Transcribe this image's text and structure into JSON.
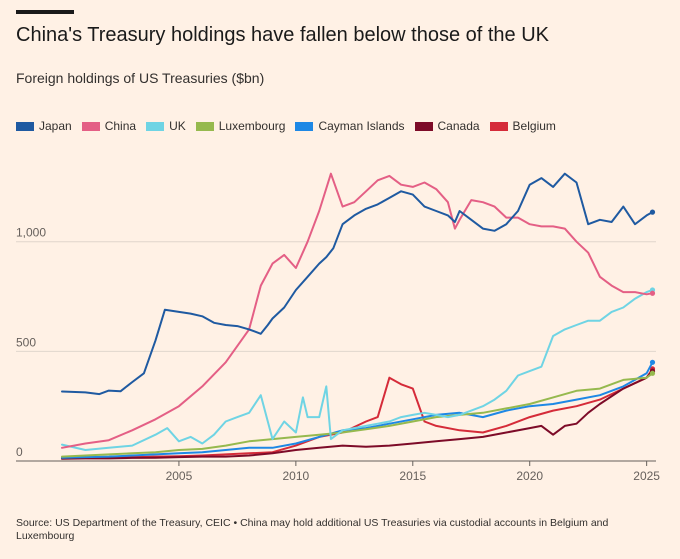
{
  "title": "China's Treasury holdings have fallen below those of the UK",
  "subtitle": "Foreign holdings of US Treasuries ($bn)",
  "source": "Source: US Department of the Treasury, CEIC • China may hold additional US Treasuries via custodial accounts in Belgium and Luxembourg",
  "chart_data": {
    "type": "line",
    "title": "China's Treasury holdings have fallen below those of the UK",
    "subtitle": "Foreign holdings of US Treasuries ($bn)",
    "xlim": [
      2000.0,
      2025.4
    ],
    "ylim": [
      0,
      1400
    ],
    "x_ticks": [
      2005,
      2010,
      2015,
      2020,
      2025
    ],
    "x_tick_labels": [
      "2005",
      "2010",
      "2015",
      "2020",
      "2025"
    ],
    "y_ticks": [
      0,
      500,
      1000
    ],
    "y_tick_labels": [
      "0",
      "500",
      "1,000"
    ],
    "grid": "horizontal",
    "legend_position": "top-left",
    "series": [
      {
        "name": "Japan",
        "color": "#1f5aa1",
        "points": [
          [
            2000.0,
            317
          ],
          [
            2001.0,
            313
          ],
          [
            2001.6,
            305
          ],
          [
            2002.0,
            321
          ],
          [
            2002.5,
            318
          ],
          [
            2003.0,
            360
          ],
          [
            2003.5,
            400
          ],
          [
            2004.0,
            550
          ],
          [
            2004.4,
            690
          ],
          [
            2005.0,
            680
          ],
          [
            2005.5,
            672
          ],
          [
            2006.0,
            660
          ],
          [
            2006.5,
            630
          ],
          [
            2007.0,
            620
          ],
          [
            2007.5,
            615
          ],
          [
            2008.0,
            600
          ],
          [
            2008.5,
            580
          ],
          [
            2008.8,
            620
          ],
          [
            2009.0,
            650
          ],
          [
            2009.5,
            700
          ],
          [
            2010.0,
            780
          ],
          [
            2010.5,
            840
          ],
          [
            2011.0,
            900
          ],
          [
            2011.3,
            930
          ],
          [
            2011.6,
            970
          ],
          [
            2012.0,
            1080
          ],
          [
            2012.5,
            1120
          ],
          [
            2013.0,
            1150
          ],
          [
            2013.5,
            1170
          ],
          [
            2014.0,
            1200
          ],
          [
            2014.5,
            1230
          ],
          [
            2015.0,
            1215
          ],
          [
            2015.5,
            1160
          ],
          [
            2016.0,
            1140
          ],
          [
            2016.5,
            1120
          ],
          [
            2016.8,
            1090
          ],
          [
            2017.0,
            1140
          ],
          [
            2017.5,
            1100
          ],
          [
            2018.0,
            1060
          ],
          [
            2018.5,
            1050
          ],
          [
            2019.0,
            1080
          ],
          [
            2019.5,
            1140
          ],
          [
            2020.0,
            1260
          ],
          [
            2020.5,
            1290
          ],
          [
            2021.0,
            1250
          ],
          [
            2021.5,
            1310
          ],
          [
            2022.0,
            1270
          ],
          [
            2022.5,
            1080
          ],
          [
            2023.0,
            1100
          ],
          [
            2023.5,
            1090
          ],
          [
            2024.0,
            1160
          ],
          [
            2024.5,
            1080
          ],
          [
            2025.0,
            1120
          ],
          [
            2025.25,
            1135
          ]
        ]
      },
      {
        "name": "China",
        "color": "#e45f85",
        "points": [
          [
            2000.0,
            60
          ],
          [
            2001.0,
            80
          ],
          [
            2002.0,
            95
          ],
          [
            2003.0,
            140
          ],
          [
            2004.0,
            190
          ],
          [
            2005.0,
            250
          ],
          [
            2006.0,
            340
          ],
          [
            2007.0,
            450
          ],
          [
            2008.0,
            600
          ],
          [
            2008.5,
            800
          ],
          [
            2009.0,
            900
          ],
          [
            2009.5,
            940
          ],
          [
            2010.0,
            880
          ],
          [
            2010.5,
            1000
          ],
          [
            2011.0,
            1140
          ],
          [
            2011.5,
            1310
          ],
          [
            2012.0,
            1160
          ],
          [
            2012.5,
            1180
          ],
          [
            2013.0,
            1230
          ],
          [
            2013.5,
            1280
          ],
          [
            2014.0,
            1300
          ],
          [
            2014.5,
            1260
          ],
          [
            2015.0,
            1250
          ],
          [
            2015.5,
            1270
          ],
          [
            2016.0,
            1240
          ],
          [
            2016.5,
            1180
          ],
          [
            2016.8,
            1060
          ],
          [
            2017.0,
            1100
          ],
          [
            2017.5,
            1190
          ],
          [
            2018.0,
            1180
          ],
          [
            2018.5,
            1160
          ],
          [
            2019.0,
            1110
          ],
          [
            2019.5,
            1110
          ],
          [
            2020.0,
            1080
          ],
          [
            2020.5,
            1070
          ],
          [
            2021.0,
            1070
          ],
          [
            2021.5,
            1060
          ],
          [
            2022.0,
            1000
          ],
          [
            2022.5,
            950
          ],
          [
            2023.0,
            840
          ],
          [
            2023.5,
            800
          ],
          [
            2024.0,
            770
          ],
          [
            2024.5,
            770
          ],
          [
            2025.0,
            760
          ],
          [
            2025.25,
            765
          ]
        ]
      },
      {
        "name": "UK",
        "color": "#6fd4e4",
        "points": [
          [
            2000.0,
            75
          ],
          [
            2001.0,
            50
          ],
          [
            2002.0,
            60
          ],
          [
            2003.0,
            70
          ],
          [
            2004.0,
            120
          ],
          [
            2004.5,
            150
          ],
          [
            2005.0,
            90
          ],
          [
            2005.5,
            110
          ],
          [
            2006.0,
            80
          ],
          [
            2006.5,
            120
          ],
          [
            2007.0,
            180
          ],
          [
            2007.5,
            200
          ],
          [
            2008.0,
            220
          ],
          [
            2008.5,
            300
          ],
          [
            2009.0,
            100
          ],
          [
            2009.5,
            180
          ],
          [
            2010.0,
            130
          ],
          [
            2010.3,
            290
          ],
          [
            2010.5,
            200
          ],
          [
            2011.0,
            200
          ],
          [
            2011.3,
            340
          ],
          [
            2011.5,
            100
          ],
          [
            2012.0,
            140
          ],
          [
            2012.5,
            150
          ],
          [
            2013.0,
            160
          ],
          [
            2013.5,
            170
          ],
          [
            2014.0,
            180
          ],
          [
            2014.5,
            200
          ],
          [
            2015.0,
            210
          ],
          [
            2015.5,
            220
          ],
          [
            2016.0,
            210
          ],
          [
            2016.5,
            200
          ],
          [
            2017.0,
            210
          ],
          [
            2017.5,
            230
          ],
          [
            2018.0,
            250
          ],
          [
            2018.5,
            280
          ],
          [
            2019.0,
            320
          ],
          [
            2019.5,
            390
          ],
          [
            2020.0,
            410
          ],
          [
            2020.5,
            430
          ],
          [
            2021.0,
            570
          ],
          [
            2021.5,
            600
          ],
          [
            2022.0,
            620
          ],
          [
            2022.5,
            640
          ],
          [
            2023.0,
            640
          ],
          [
            2023.5,
            680
          ],
          [
            2024.0,
            700
          ],
          [
            2024.5,
            740
          ],
          [
            2025.0,
            770
          ],
          [
            2025.25,
            780
          ]
        ]
      },
      {
        "name": "Luxembourg",
        "color": "#96b94e",
        "points": [
          [
            2000.0,
            20
          ],
          [
            2001.0,
            25
          ],
          [
            2002.0,
            30
          ],
          [
            2003.0,
            35
          ],
          [
            2004.0,
            40
          ],
          [
            2005.0,
            50
          ],
          [
            2006.0,
            55
          ],
          [
            2007.0,
            70
          ],
          [
            2008.0,
            90
          ],
          [
            2009.0,
            100
          ],
          [
            2010.0,
            110
          ],
          [
            2011.0,
            120
          ],
          [
            2012.0,
            130
          ],
          [
            2013.0,
            145
          ],
          [
            2014.0,
            160
          ],
          [
            2015.0,
            180
          ],
          [
            2016.0,
            200
          ],
          [
            2017.0,
            210
          ],
          [
            2018.0,
            220
          ],
          [
            2019.0,
            240
          ],
          [
            2020.0,
            260
          ],
          [
            2021.0,
            290
          ],
          [
            2022.0,
            320
          ],
          [
            2023.0,
            330
          ],
          [
            2024.0,
            370
          ],
          [
            2025.0,
            380
          ],
          [
            2025.25,
            400
          ]
        ]
      },
      {
        "name": "Cayman Islands",
        "color": "#1e88e5",
        "points": [
          [
            2000.0,
            15
          ],
          [
            2001.0,
            18
          ],
          [
            2002.0,
            20
          ],
          [
            2003.0,
            25
          ],
          [
            2004.0,
            30
          ],
          [
            2005.0,
            35
          ],
          [
            2006.0,
            40
          ],
          [
            2007.0,
            50
          ],
          [
            2008.0,
            60
          ],
          [
            2009.0,
            60
          ],
          [
            2010.0,
            80
          ],
          [
            2011.0,
            110
          ],
          [
            2012.0,
            140
          ],
          [
            2013.0,
            150
          ],
          [
            2014.0,
            170
          ],
          [
            2015.0,
            190
          ],
          [
            2016.0,
            210
          ],
          [
            2017.0,
            220
          ],
          [
            2018.0,
            200
          ],
          [
            2019.0,
            230
          ],
          [
            2020.0,
            250
          ],
          [
            2021.0,
            260
          ],
          [
            2022.0,
            280
          ],
          [
            2023.0,
            300
          ],
          [
            2024.0,
            340
          ],
          [
            2025.0,
            400
          ],
          [
            2025.25,
            450
          ]
        ]
      },
      {
        "name": "Canada",
        "color": "#7d0b28",
        "points": [
          [
            2000.0,
            10
          ],
          [
            2001.0,
            12
          ],
          [
            2002.0,
            12
          ],
          [
            2003.0,
            14
          ],
          [
            2004.0,
            15
          ],
          [
            2005.0,
            18
          ],
          [
            2006.0,
            20
          ],
          [
            2007.0,
            20
          ],
          [
            2008.0,
            25
          ],
          [
            2009.0,
            35
          ],
          [
            2010.0,
            50
          ],
          [
            2011.0,
            60
          ],
          [
            2012.0,
            70
          ],
          [
            2013.0,
            65
          ],
          [
            2014.0,
            70
          ],
          [
            2015.0,
            80
          ],
          [
            2016.0,
            90
          ],
          [
            2017.0,
            100
          ],
          [
            2018.0,
            110
          ],
          [
            2019.0,
            130
          ],
          [
            2020.0,
            150
          ],
          [
            2020.5,
            160
          ],
          [
            2021.0,
            120
          ],
          [
            2021.5,
            160
          ],
          [
            2022.0,
            170
          ],
          [
            2022.5,
            220
          ],
          [
            2023.0,
            260
          ],
          [
            2024.0,
            330
          ],
          [
            2025.0,
            380
          ],
          [
            2025.25,
            410
          ]
        ]
      },
      {
        "name": "Belgium",
        "color": "#d52b39",
        "points": [
          [
            2000.0,
            15
          ],
          [
            2001.0,
            15
          ],
          [
            2002.0,
            16
          ],
          [
            2003.0,
            18
          ],
          [
            2004.0,
            20
          ],
          [
            2005.0,
            22
          ],
          [
            2006.0,
            25
          ],
          [
            2007.0,
            30
          ],
          [
            2008.0,
            35
          ],
          [
            2009.0,
            40
          ],
          [
            2010.0,
            70
          ],
          [
            2011.0,
            110
          ],
          [
            2012.0,
            130
          ],
          [
            2013.0,
            180
          ],
          [
            2013.5,
            200
          ],
          [
            2014.0,
            380
          ],
          [
            2014.5,
            350
          ],
          [
            2015.0,
            330
          ],
          [
            2015.5,
            180
          ],
          [
            2016.0,
            160
          ],
          [
            2017.0,
            140
          ],
          [
            2018.0,
            130
          ],
          [
            2019.0,
            160
          ],
          [
            2020.0,
            200
          ],
          [
            2021.0,
            230
          ],
          [
            2022.0,
            250
          ],
          [
            2023.0,
            280
          ],
          [
            2024.0,
            330
          ],
          [
            2025.0,
            380
          ],
          [
            2025.25,
            420
          ]
        ]
      }
    ]
  }
}
